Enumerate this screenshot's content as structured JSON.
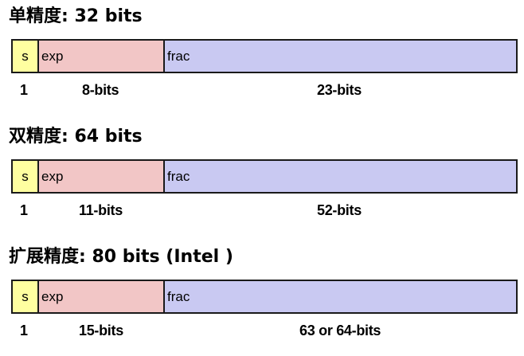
{
  "colors": {
    "sign": "#ffffa0",
    "exponent": "#f2c6c6",
    "fraction": "#c9c9f2",
    "border": "#1a1a1a"
  },
  "formats": [
    {
      "title": "单精度: 32 bits",
      "fields": {
        "s": "s",
        "exp": "exp",
        "frac": "frac"
      },
      "bits": {
        "s": "1",
        "exp": "8-bits",
        "frac": "23-bits"
      }
    },
    {
      "title": "双精度: 64 bits",
      "fields": {
        "s": "s",
        "exp": "exp",
        "frac": "frac"
      },
      "bits": {
        "s": "1",
        "exp": "11-bits",
        "frac": "52-bits"
      }
    },
    {
      "title": "扩展精度: 80 bits (Intel )",
      "fields": {
        "s": "s",
        "exp": "exp",
        "frac": "frac"
      },
      "bits": {
        "s": "1",
        "exp": "15-bits",
        "frac": "63 or 64-bits"
      }
    }
  ]
}
